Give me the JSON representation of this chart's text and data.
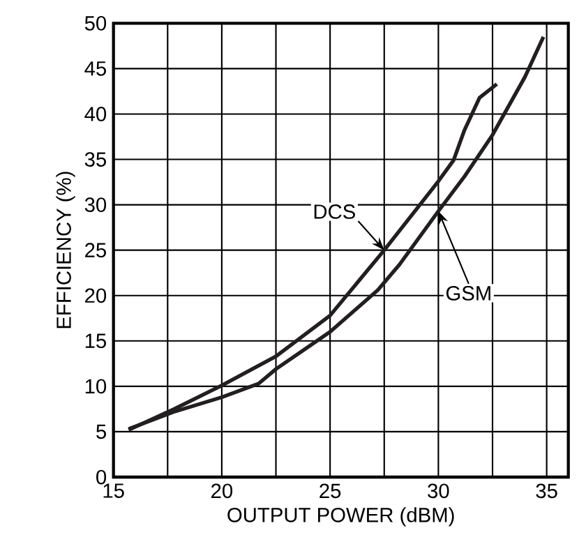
{
  "chart_data": {
    "type": "line",
    "xlabel": "OUTPUT POWER (dBM)",
    "ylabel": "EFFICIENCY (%)",
    "xlim": [
      15,
      36
    ],
    "xticks": [
      15,
      {
        "value": 17.5,
        "label": null
      },
      20,
      {
        "value": 22.5,
        "label": null
      },
      25,
      {
        "value": 27.5,
        "label": null
      },
      30,
      {
        "value": 32.5,
        "label": null
      },
      35
    ],
    "ylim": [
      0,
      50
    ],
    "yticks": [
      0,
      5,
      10,
      15,
      20,
      25,
      30,
      35,
      40,
      45,
      50
    ],
    "grid": true,
    "marker": "none",
    "line_style": "solid",
    "series": [
      {
        "name": "DCS",
        "color": "#231f20",
        "x": [
          15.7,
          17.8,
          20,
          22.5,
          25,
          27.5,
          30,
          30.7,
          31.2,
          31.9,
          32.7
        ],
        "values": [
          5.2,
          7.5,
          10.1,
          13.3,
          17.8,
          25,
          32.6,
          34.9,
          38.2,
          41.8,
          43.3
        ]
      },
      {
        "name": "GSM",
        "color": "#231f20",
        "x": [
          15.7,
          17.8,
          20,
          21.7,
          22.5,
          25,
          27.2,
          28.2,
          30,
          31.2,
          32.5,
          34.0,
          34.85
        ],
        "values": [
          5.3,
          7.2,
          8.8,
          10.3,
          11.9,
          16.0,
          20.6,
          23.4,
          29.3,
          33.1,
          37.7,
          44.1,
          48.5
        ]
      }
    ]
  }
}
